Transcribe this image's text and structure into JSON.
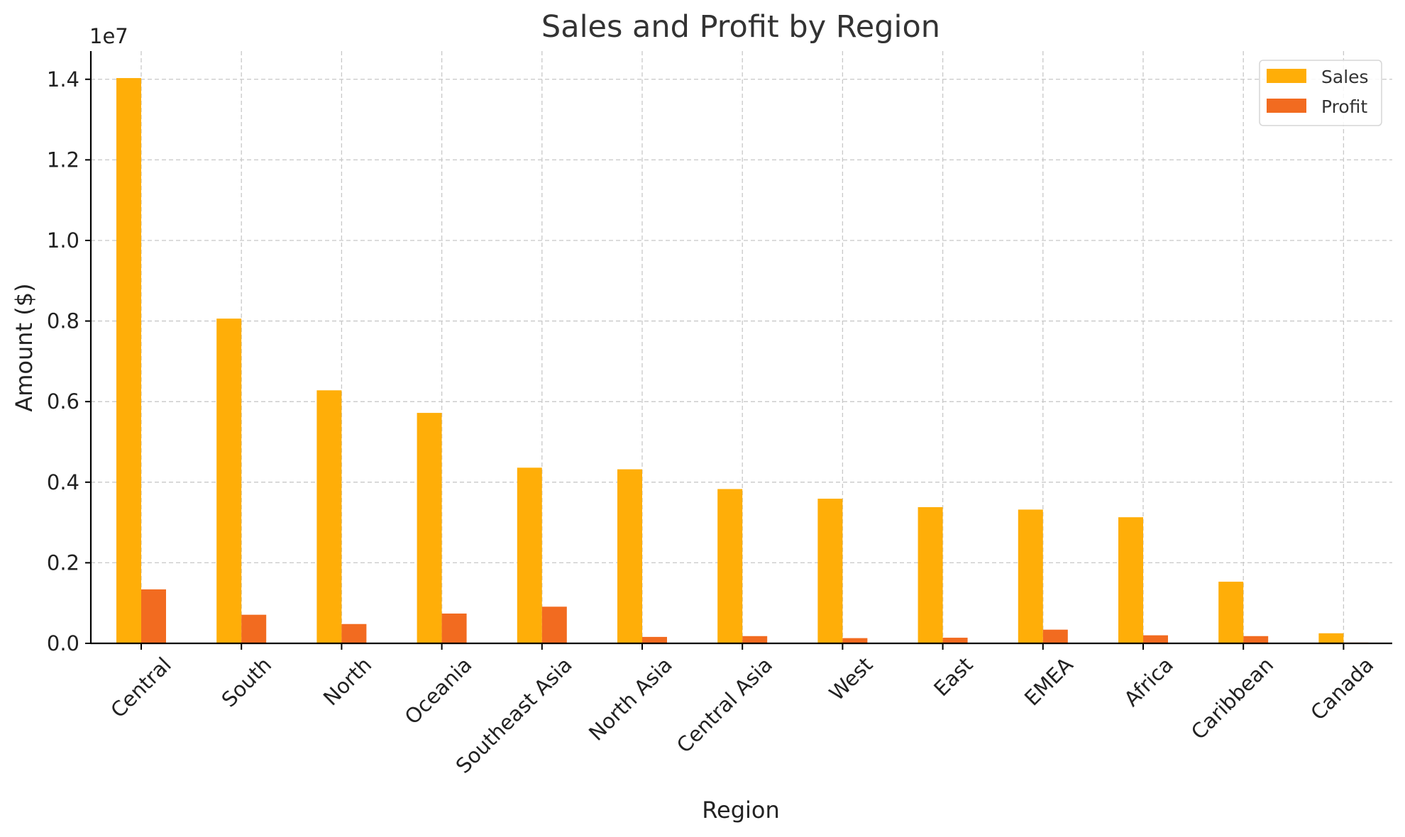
{
  "chart_data": {
    "type": "bar",
    "title": "Sales and Profit by Region",
    "xlabel": "Region",
    "ylabel": "Amount ($)",
    "y_offset_label": "1e7",
    "ylim": [
      0,
      1.47
    ],
    "yticks": [
      "0.0",
      "0.2",
      "0.4",
      "0.6",
      "0.8",
      "1.0",
      "1.2",
      "1.4"
    ],
    "ytick_values": [
      0,
      0.2,
      0.4,
      0.6,
      0.8,
      1.0,
      1.2,
      1.4
    ],
    "grid": true,
    "legend_position": "top-right",
    "categories": [
      "Central",
      "South",
      "North",
      "Oceania",
      "Southeast Asia",
      "North Asia",
      "Central Asia",
      "West",
      "East",
      "EMEA",
      "Africa",
      "Caribbean",
      "Canada"
    ],
    "series": [
      {
        "name": "Sales",
        "color": "#FFAE08",
        "values": [
          1.403,
          0.806,
          0.628,
          0.572,
          0.436,
          0.432,
          0.383,
          0.359,
          0.338,
          0.332,
          0.313,
          0.153,
          0.025
        ]
      },
      {
        "name": "Profit",
        "color": "#F26B20",
        "values": [
          0.134,
          0.071,
          0.048,
          0.074,
          0.091,
          0.016,
          0.018,
          0.013,
          0.014,
          0.034,
          0.02,
          0.018,
          0.002
        ]
      }
    ]
  }
}
